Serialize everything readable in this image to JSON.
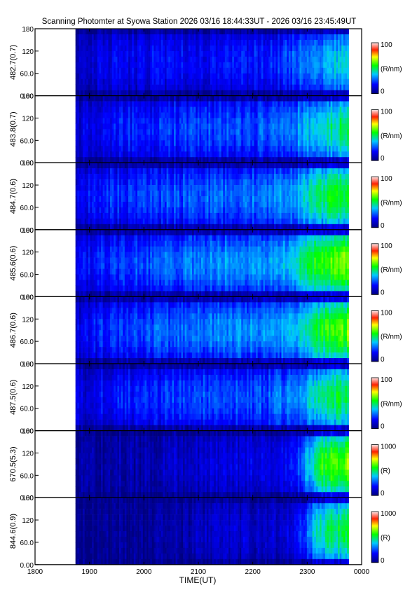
{
  "chart_data": {
    "type": "heatmap",
    "title": "Scanning Photomter at Syowa Station  2026 03/16 18:44:33UT - 2026 03/16 23:45:49UT",
    "xlabel": "TIME(UT)",
    "x_ticks": [
      "1800",
      "1900",
      "2000",
      "2100",
      "2200",
      "2300",
      "0000"
    ],
    "x_range_minutes": [
      0,
      360
    ],
    "data_start_minutes": 44.55,
    "data_end_minutes": 345.82,
    "y_ticks": [
      "0.00",
      "60.0",
      "120",
      "180"
    ],
    "y_range": [
      0,
      180
    ],
    "panels": [
      {
        "label": "482.7(0.7)",
        "unit": "(R/nm)",
        "cbar_min": "0",
        "cbar_max": "100",
        "intensity": [
          0.1,
          0.15,
          0.15,
          0.17,
          0.17,
          0.18,
          0.2,
          0.2,
          0.26,
          0.34,
          0.42
        ]
      },
      {
        "label": "483.8(0.7)",
        "unit": "(R/nm)",
        "cbar_min": "0",
        "cbar_max": "100",
        "intensity": [
          0.12,
          0.18,
          0.2,
          0.22,
          0.24,
          0.25,
          0.26,
          0.26,
          0.32,
          0.42,
          0.5
        ]
      },
      {
        "label": "484.7(0.6)",
        "unit": "(R/nm)",
        "cbar_min": "0",
        "cbar_max": "100",
        "intensity": [
          0.14,
          0.22,
          0.22,
          0.25,
          0.26,
          0.28,
          0.28,
          0.3,
          0.36,
          0.48,
          0.55
        ]
      },
      {
        "label": "485.6(0.6)",
        "unit": "(R/nm)",
        "cbar_min": "0",
        "cbar_max": "100",
        "intensity": [
          0.14,
          0.22,
          0.24,
          0.28,
          0.3,
          0.32,
          0.34,
          0.32,
          0.4,
          0.58,
          0.66
        ]
      },
      {
        "label": "486.7(0.6)",
        "unit": "(R/nm)",
        "cbar_min": "0",
        "cbar_max": "100",
        "intensity": [
          0.14,
          0.22,
          0.24,
          0.27,
          0.29,
          0.31,
          0.33,
          0.31,
          0.38,
          0.54,
          0.62
        ]
      },
      {
        "label": "487.5(0.6)",
        "unit": "(R/nm)",
        "cbar_min": "0",
        "cbar_max": "100",
        "intensity": [
          0.12,
          0.18,
          0.2,
          0.22,
          0.24,
          0.25,
          0.26,
          0.26,
          0.32,
          0.46,
          0.52
        ]
      },
      {
        "label": "670.5(5.3)",
        "unit": "(R)",
        "cbar_min": "0",
        "cbar_max": "1000",
        "intensity": [
          0.03,
          0.05,
          0.06,
          0.08,
          0.1,
          0.12,
          0.14,
          0.14,
          0.18,
          0.55,
          0.62
        ]
      },
      {
        "label": "844.6(0.9)",
        "unit": "(R)",
        "cbar_min": "0",
        "cbar_max": "1000",
        "intensity": [
          0.01,
          0.02,
          0.02,
          0.04,
          0.06,
          0.1,
          0.12,
          0.1,
          0.14,
          0.45,
          0.52
        ]
      }
    ]
  }
}
